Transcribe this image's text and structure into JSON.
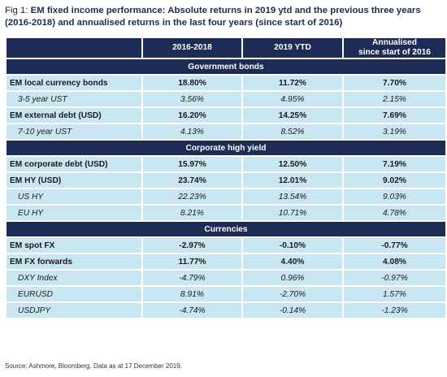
{
  "title": {
    "prefix": "Fig 1: ",
    "text": "EM fixed income performance: Absolute returns in 2019 ytd and the previous three years (2016-2018) and annualised returns in the last four years (since start of 2016)"
  },
  "columns": [
    "2016-2018",
    "2019 YTD",
    "Annualised\nsince start of 2016"
  ],
  "sections": [
    {
      "name": "Government bonds",
      "rows": [
        {
          "label": "EM local currency bonds",
          "sub": false,
          "values": [
            "18.80%",
            "11.72%",
            "7.70%"
          ]
        },
        {
          "label": "3-5 year UST",
          "sub": true,
          "values": [
            "3.56%",
            "4.95%",
            "2.15%"
          ]
        },
        {
          "label": "EM external debt (USD)",
          "sub": false,
          "values": [
            "16.20%",
            "14.25%",
            "7.69%"
          ]
        },
        {
          "label": "7-10 year UST",
          "sub": true,
          "values": [
            "4.13%",
            "8.52%",
            "3.19%"
          ]
        }
      ]
    },
    {
      "name": "Corporate high yield",
      "rows": [
        {
          "label": "EM corporate debt (USD)",
          "sub": false,
          "values": [
            "15.97%",
            "12.50%",
            "7.19%"
          ]
        },
        {
          "label": "EM HY (USD)",
          "sub": false,
          "values": [
            "23.74%",
            "12.01%",
            "9.02%"
          ]
        },
        {
          "label": "US HY",
          "sub": true,
          "values": [
            "22.23%",
            "13.54%",
            "9.03%"
          ]
        },
        {
          "label": "EU HY",
          "sub": true,
          "values": [
            "8.21%",
            "10.71%",
            "4.78%"
          ]
        }
      ]
    },
    {
      "name": "Currencies",
      "rows": [
        {
          "label": "EM spot FX",
          "sub": false,
          "values": [
            "-2.97%",
            "-0.10%",
            "-0.77%"
          ]
        },
        {
          "label": "EM FX forwards",
          "sub": false,
          "values": [
            "11.77%",
            "4.40%",
            "4.08%"
          ]
        },
        {
          "label": "DXY Index",
          "sub": true,
          "values": [
            "-4.79%",
            "0.96%",
            "-0.97%"
          ]
        },
        {
          "label": "EURUSD",
          "sub": true,
          "values": [
            "8.91%",
            "-2.70%",
            "1.57%"
          ]
        },
        {
          "label": "USDJPY",
          "sub": true,
          "values": [
            "-4.74%",
            "-0.14%",
            "-1.23%"
          ]
        }
      ]
    }
  ],
  "source": "Source: Ashmore, Bloomberg. Data as at 17 December 2019.",
  "colors": {
    "header": "#1d2c56",
    "cell": "#c9e6f3"
  }
}
